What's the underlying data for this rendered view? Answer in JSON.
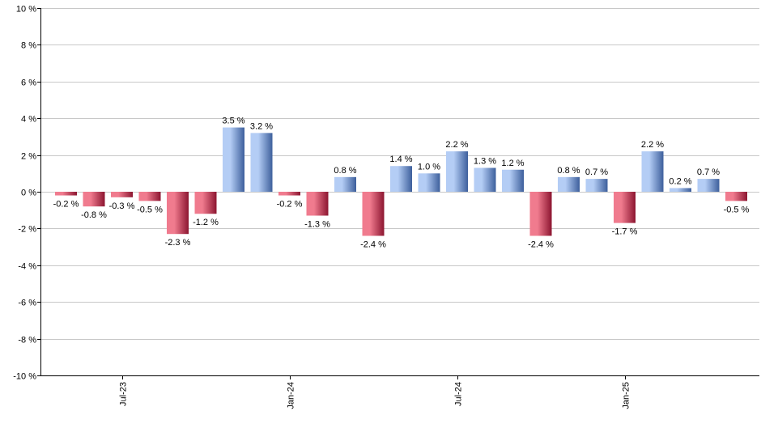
{
  "chart_data": {
    "type": "bar",
    "title": "",
    "xlabel": "",
    "ylabel": "",
    "ylim": [
      -10,
      10
    ],
    "y_ticks": [
      10,
      8,
      6,
      4,
      2,
      0,
      -2,
      -4,
      -6,
      -8,
      -10
    ],
    "y_tick_labels": [
      "10 %",
      "8 %",
      "6 %",
      "4 %",
      "2 %",
      "0 %",
      "-2 %",
      "-4 %",
      "-6 %",
      "-8 %",
      "-10 %"
    ],
    "x_tick_labels": [
      {
        "label": "Jul-23",
        "bar_index": 2
      },
      {
        "label": "Jan-24",
        "bar_index": 8
      },
      {
        "label": "Jul-24",
        "bar_index": 14
      },
      {
        "label": "Jan-25",
        "bar_index": 20
      }
    ],
    "values": [
      -0.2,
      -0.8,
      -0.3,
      -0.5,
      -2.3,
      -1.2,
      3.5,
      3.2,
      -0.2,
      -1.3,
      0.8,
      -2.4,
      1.4,
      1.0,
      2.2,
      1.3,
      1.2,
      -2.4,
      0.8,
      0.7,
      -1.7,
      2.2,
      0.2,
      0.7,
      -0.5
    ],
    "labels": [
      "-0.2 %",
      "-0.8 %",
      "-0.3 %",
      "-0.5 %",
      "-2.3 %",
      "-1.2 %",
      "3.5 %",
      "3.2 %",
      "-0.2 %",
      "-1.3 %",
      "0.8 %",
      "-2.4 %",
      "1.4 %",
      "1.0 %",
      "2.2 %",
      "1.3 %",
      "1.2 %",
      "-2.4 %",
      "0.8 %",
      "0.7 %",
      "-1.7 %",
      "2.2 %",
      "0.2 %",
      "0.7 %",
      "-0.5 %"
    ],
    "colors": {
      "positive_light": "#b4cdf5",
      "positive_dark": "#3d5f9c",
      "negative_light": "#f07b8e",
      "negative_dark": "#8c1530"
    }
  }
}
